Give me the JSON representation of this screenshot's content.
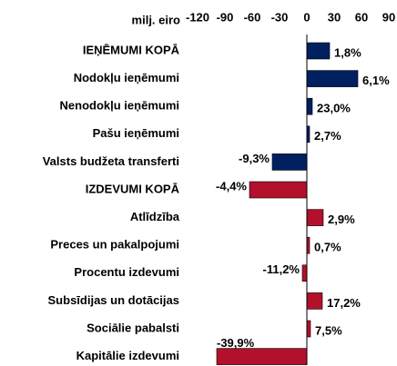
{
  "chart_data": {
    "type": "hbar",
    "axis_label": "milj. eiro",
    "categories": [
      "IEŅĒMUMI KOPĀ",
      "Nodokļu ieņēmumi",
      "Nenodokļu ieņēmumi",
      "Pašu ieņēmumi",
      "Valsts budžeta transferti",
      "IZDEVUMI KOPĀ",
      "Atlīdzība",
      "Preces un pakalpojumi",
      "Procentu izdevumi",
      "Subsīdijas un dotācijas",
      "Sociālie pabalsti",
      "Kapitālie izdevumi"
    ],
    "values": [
      25,
      56,
      6,
      3,
      -38,
      -63,
      18,
      3,
      -5,
      17,
      4,
      -99
    ],
    "bar_labels": [
      "1,8%",
      "6,1%",
      "23,0%",
      "2,7%",
      "-9,3%",
      "-4,4%",
      "2,9%",
      "0,7%",
      "-11,2%",
      "17,2%",
      "7,5%",
      "-39,9%"
    ],
    "colors": [
      "#002060",
      "#002060",
      "#002060",
      "#002060",
      "#002060",
      "#b3102b",
      "#b3102b",
      "#b3102b",
      "#b3102b",
      "#b3102b",
      "#b3102b",
      "#b3102b"
    ],
    "xlim": [
      -120,
      90
    ],
    "xticks": [
      -120,
      -90,
      -60,
      -30,
      0,
      30,
      60,
      90
    ]
  }
}
